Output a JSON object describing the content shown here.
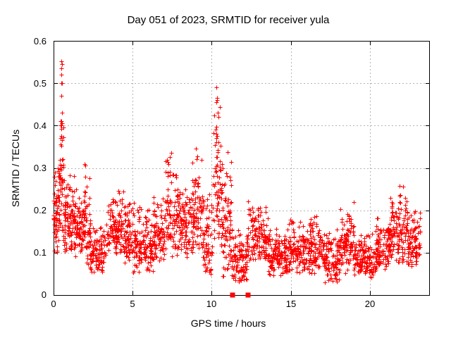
{
  "chart_data": {
    "type": "scatter",
    "title": "Day 051 of 2023, SRMTID for receiver yula",
    "xlabel": "GPS time / hours",
    "ylabel": "SRMTID / TECUs",
    "xlim": [
      0,
      23.8
    ],
    "ylim": [
      0,
      0.6
    ],
    "xticks": [
      0,
      5,
      10,
      15,
      20
    ],
    "yticks": [
      0,
      0.1,
      0.2,
      0.3,
      0.4,
      0.5,
      0.6
    ],
    "xtick_labels": [
      "0",
      "5",
      "10",
      "15",
      "20"
    ],
    "ytick_labels": [
      "0",
      "0.1",
      "0.2",
      "0.3",
      "0.4",
      "0.5",
      "0.6"
    ],
    "grid": true,
    "legend": "none",
    "background_color": "#ffffff",
    "axis_color": "#000000",
    "grid_color": "#b5b5b5",
    "seed": 20230051,
    "series": [
      {
        "name": "srmtid-scatter",
        "marker": "plus",
        "color": "#ff0000",
        "cluster_profile": [
          [
            0.0,
            0.35,
            60,
            0.1,
            0.33
          ],
          [
            0.35,
            0.65,
            50,
            0.12,
            0.46
          ],
          [
            0.65,
            1.3,
            90,
            0.1,
            0.3
          ],
          [
            1.3,
            1.9,
            80,
            0.09,
            0.26
          ],
          [
            1.9,
            2.3,
            55,
            0.07,
            0.31
          ],
          [
            2.3,
            3.3,
            110,
            0.05,
            0.17
          ],
          [
            3.3,
            4.3,
            110,
            0.09,
            0.26
          ],
          [
            4.3,
            5.0,
            80,
            0.07,
            0.26
          ],
          [
            5.0,
            6.3,
            140,
            0.05,
            0.22
          ],
          [
            6.3,
            7.0,
            80,
            0.08,
            0.26
          ],
          [
            7.0,
            8.0,
            110,
            0.09,
            0.34
          ],
          [
            8.0,
            8.6,
            70,
            0.08,
            0.28
          ],
          [
            8.6,
            9.4,
            90,
            0.1,
            0.35
          ],
          [
            9.4,
            10.05,
            70,
            0.04,
            0.28
          ],
          [
            10.05,
            10.6,
            60,
            0.12,
            0.45
          ],
          [
            10.6,
            11.25,
            90,
            0.04,
            0.35
          ],
          [
            11.25,
            12.25,
            110,
            0.03,
            0.16
          ],
          [
            12.25,
            13.55,
            130,
            0.08,
            0.23
          ],
          [
            13.55,
            14.6,
            110,
            0.04,
            0.18
          ],
          [
            14.6,
            16.1,
            160,
            0.05,
            0.19
          ],
          [
            16.1,
            17.1,
            110,
            0.05,
            0.21
          ],
          [
            17.1,
            18.1,
            110,
            0.03,
            0.16
          ],
          [
            18.1,
            19.0,
            100,
            0.05,
            0.22
          ],
          [
            19.0,
            20.4,
            150,
            0.04,
            0.16
          ],
          [
            20.4,
            21.3,
            100,
            0.06,
            0.19
          ],
          [
            21.3,
            22.4,
            120,
            0.07,
            0.26
          ],
          [
            22.4,
            23.2,
            90,
            0.06,
            0.21
          ]
        ],
        "outlier_points": [
          [
            0.5,
            0.552
          ],
          [
            0.52,
            0.545
          ],
          [
            0.48,
            0.535
          ],
          [
            0.5,
            0.52
          ],
          [
            0.5,
            0.5
          ],
          [
            0.53,
            0.5
          ],
          [
            0.47,
            0.47
          ],
          [
            0.55,
            0.43
          ],
          [
            0.5,
            0.41
          ],
          [
            0.53,
            0.405
          ],
          [
            0.48,
            0.4
          ],
          [
            0.51,
            0.375
          ],
          [
            0.46,
            0.37
          ],
          [
            0.52,
            0.365
          ],
          [
            10.3,
            0.49
          ],
          [
            10.32,
            0.465
          ],
          [
            10.36,
            0.46
          ],
          [
            10.3,
            0.455
          ],
          [
            10.4,
            0.43
          ],
          [
            10.42,
            0.42
          ],
          [
            10.25,
            0.39
          ],
          [
            10.3,
            0.38
          ],
          [
            10.35,
            0.375
          ],
          [
            10.28,
            0.37
          ],
          [
            10.45,
            0.36
          ],
          [
            7.45,
            0.335
          ],
          [
            9.0,
            0.345
          ],
          [
            2.02,
            0.305
          ],
          [
            21.9,
            0.258
          ]
        ]
      },
      {
        "name": "flagged-zero-points",
        "marker": "filled-square",
        "color": "#ff0000",
        "points": [
          [
            11.3,
            0
          ],
          [
            12.3,
            0
          ]
        ]
      }
    ]
  }
}
